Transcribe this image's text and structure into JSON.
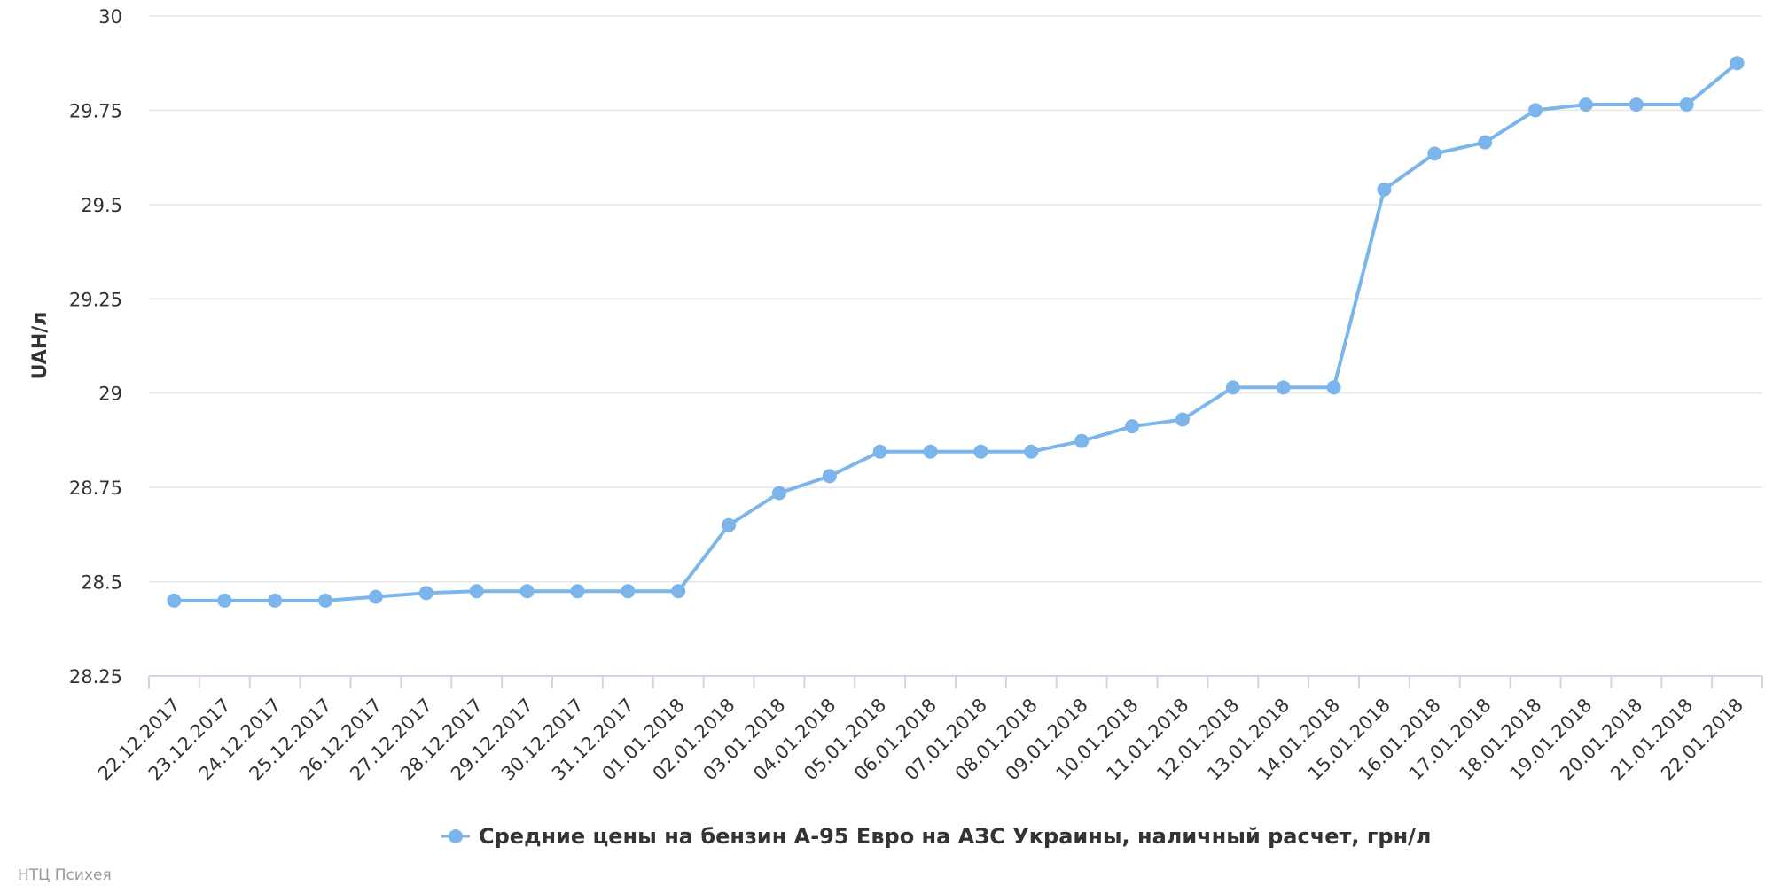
{
  "colors": {
    "series": "#7cb5ec",
    "grid": "#e6e6e6",
    "axis_line": "#ccd6eb",
    "tick_text": "#333333",
    "credit": "#999999"
  },
  "chart_data": {
    "type": "line",
    "title": "",
    "xlabel": "",
    "ylabel": "UAH/л",
    "ylim": [
      28.25,
      30
    ],
    "yticks": [
      "28.25",
      "28.5",
      "28.75",
      "29",
      "29.25",
      "29.5",
      "29.75",
      "30"
    ],
    "grid": true,
    "legend_position": "bottom-center",
    "categories": [
      "22.12.2017",
      "23.12.2017",
      "24.12.2017",
      "25.12.2017",
      "26.12.2017",
      "27.12.2017",
      "28.12.2017",
      "29.12.2017",
      "30.12.2017",
      "31.12.2017",
      "01.01.2018",
      "02.01.2018",
      "03.01.2018",
      "04.01.2018",
      "05.01.2018",
      "06.01.2018",
      "07.01.2018",
      "08.01.2018",
      "09.01.2018",
      "10.01.2018",
      "11.01.2018",
      "12.01.2018",
      "13.01.2018",
      "14.01.2018",
      "15.01.2018",
      "16.01.2018",
      "17.01.2018",
      "18.01.2018",
      "19.01.2018",
      "20.01.2018",
      "21.01.2018",
      "22.01.2018"
    ],
    "series": [
      {
        "name": "Средние цены на бензин А-95 Евро на АЗС Украины, наличный расчет, грн/л",
        "values": [
          28.45,
          28.45,
          28.45,
          28.45,
          28.46,
          28.47,
          28.475,
          28.475,
          28.475,
          28.475,
          28.475,
          28.65,
          28.735,
          28.78,
          28.845,
          28.845,
          28.845,
          28.845,
          28.873,
          28.912,
          28.93,
          29.015,
          29.015,
          29.015,
          29.54,
          29.635,
          29.665,
          29.75,
          29.765,
          29.765,
          29.765,
          29.875
        ]
      }
    ]
  },
  "credit": "НТЦ Психея"
}
